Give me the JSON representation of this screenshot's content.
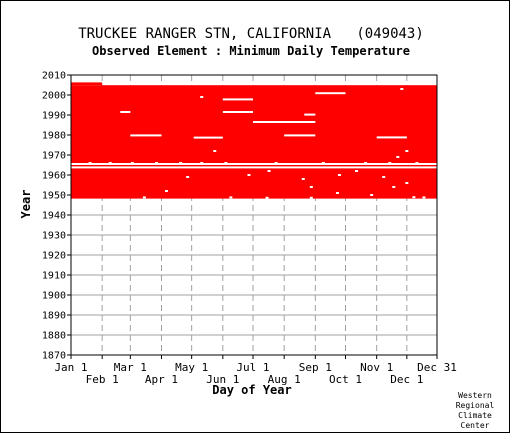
{
  "chart_data": {
    "type": "heatmap",
    "title": "TRUCKEE RANGER STN, CALIFORNIA   (049043)",
    "subtitle": "Observed Element : Minimum Daily Temperature",
    "xlabel": "Day of Year",
    "ylabel": "Year",
    "xlim": [
      1,
      365
    ],
    "ylim": [
      1870,
      2010
    ],
    "yticks": [
      2010,
      2000,
      1990,
      1980,
      1970,
      1960,
      1950,
      1940,
      1930,
      1920,
      1910,
      1900,
      1890,
      1880,
      1870
    ],
    "xticks_upper": [
      {
        "label": "Jan 1",
        "day": 1
      },
      {
        "label": "Mar 1",
        "day": 60
      },
      {
        "label": "May 1",
        "day": 121
      },
      {
        "label": "Jul 1",
        "day": 182
      },
      {
        "label": "Sep 1",
        "day": 244
      },
      {
        "label": "Nov 1",
        "day": 305
      },
      {
        "label": "Dec 31",
        "day": 365
      }
    ],
    "xticks_lower": [
      {
        "label": "Feb 1",
        "day": 32
      },
      {
        "label": "Apr 1",
        "day": 91
      },
      {
        "label": "Jun 1",
        "day": 152
      },
      {
        "label": "Aug 1",
        "day": 213
      },
      {
        "label": "Oct 1",
        "day": 274
      },
      {
        "label": "Dec 1",
        "day": 335
      }
    ],
    "grid": true,
    "record_color": "#ff0000",
    "coverage": [
      {
        "day_start": 1,
        "day_end": 365,
        "year_start": 1948.2,
        "year_end": 2004.9
      },
      {
        "day_start": 1,
        "day_end": 32,
        "year_start": 2004.9,
        "year_end": 2006.3
      }
    ],
    "gaps": [
      {
        "day_start": 50,
        "day_end": 60,
        "year": 1991.5
      },
      {
        "day_start": 60,
        "day_end": 91,
        "year": 1979.8
      },
      {
        "day_start": 123,
        "day_end": 152,
        "year": 1978.7
      },
      {
        "day_start": 152,
        "day_end": 182,
        "year": 1997.8
      },
      {
        "day_start": 152,
        "day_end": 182,
        "year": 1991.5
      },
      {
        "day_start": 182,
        "day_end": 244,
        "year": 1986.5
      },
      {
        "day_start": 213,
        "day_end": 244,
        "year": 1979.8
      },
      {
        "day_start": 233,
        "day_end": 244,
        "year": 1990.2
      },
      {
        "day_start": 244,
        "day_end": 274,
        "year": 2000.9
      },
      {
        "day_start": 305,
        "day_end": 335,
        "year": 1978.8
      },
      {
        "day_start": 1,
        "day_end": 365,
        "year": 1965.5
      },
      {
        "day_start": 1,
        "day_end": 365,
        "year": 1963.8
      }
    ],
    "missing_spots": [
      {
        "day": 20,
        "year": 1966
      },
      {
        "day": 40,
        "year": 1966
      },
      {
        "day": 62,
        "year": 1966
      },
      {
        "day": 86,
        "year": 1966
      },
      {
        "day": 110,
        "year": 1966
      },
      {
        "day": 131,
        "year": 1966
      },
      {
        "day": 155,
        "year": 1966
      },
      {
        "day": 205,
        "year": 1966
      },
      {
        "day": 252,
        "year": 1966
      },
      {
        "day": 294,
        "year": 1966
      },
      {
        "day": 318,
        "year": 1966
      },
      {
        "day": 345,
        "year": 1966
      },
      {
        "day": 96,
        "year": 1952
      },
      {
        "day": 322,
        "year": 1954
      },
      {
        "day": 335,
        "year": 1956
      },
      {
        "day": 240,
        "year": 1954
      },
      {
        "day": 266,
        "year": 1951
      },
      {
        "day": 300,
        "year": 1950
      },
      {
        "day": 74,
        "year": 1948.8
      },
      {
        "day": 160,
        "year": 1948.8
      },
      {
        "day": 196,
        "year": 1948.6
      },
      {
        "day": 240,
        "year": 1948.6
      },
      {
        "day": 342,
        "year": 1948.9
      },
      {
        "day": 352,
        "year": 1948.8
      },
      {
        "day": 144,
        "year": 1972
      },
      {
        "day": 335,
        "year": 1972
      },
      {
        "day": 326,
        "year": 1969
      },
      {
        "day": 131,
        "year": 1999
      },
      {
        "day": 330,
        "year": 2003
      },
      {
        "day": 268,
        "year": 1960
      },
      {
        "day": 312,
        "year": 1959
      },
      {
        "day": 178,
        "year": 1960
      },
      {
        "day": 117,
        "year": 1959
      },
      {
        "day": 232,
        "year": 1958
      },
      {
        "day": 198,
        "year": 1962
      },
      {
        "day": 285,
        "year": 1962
      }
    ]
  },
  "credit": [
    "Western",
    "Regional",
    "Climate",
    "Center"
  ]
}
